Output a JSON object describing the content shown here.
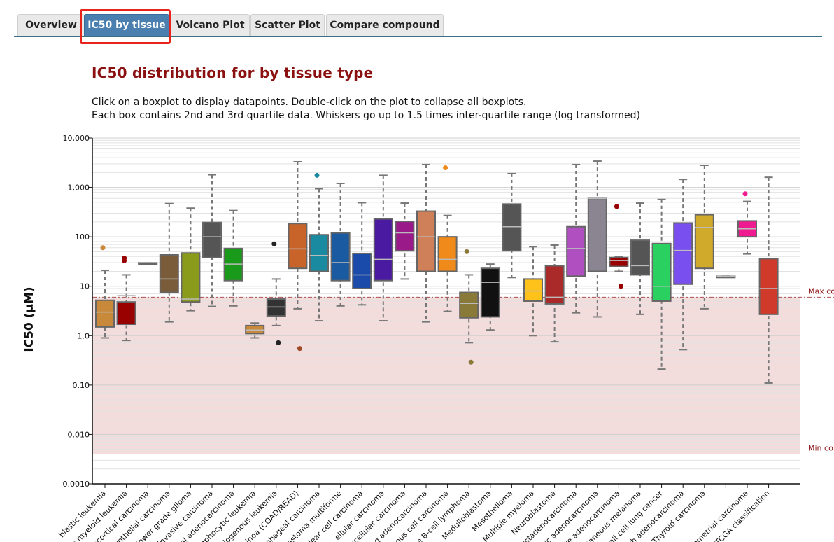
{
  "tabs": [
    {
      "id": "overview",
      "label": "Overview",
      "active": false
    },
    {
      "id": "ic50-by-tissue",
      "label": "IC50 by tissue",
      "active": true
    },
    {
      "id": "volcano-plot",
      "label": "Volcano Plot",
      "active": false
    },
    {
      "id": "scatter-plot",
      "label": "Scatter Plot",
      "active": false
    },
    {
      "id": "compare-compound",
      "label": "Compare compound",
      "active": false
    }
  ],
  "heading": "IC50 distribution for by tissue type",
  "description": {
    "line1": "Click on a boxplot to display datapoints. Double-click on the plot to collapse all boxplots.",
    "line2": "Each box contains 2nd and 3rd quartile data. Whiskers go up to 1.5 times inter-quartile range (log transformed)"
  },
  "colors": {
    "accent": "#4a7fb0",
    "heading": "#8b1111",
    "highlight": "#e8231c",
    "shade": "#f3dcdc"
  },
  "chart_data": {
    "type": "boxplot",
    "scale": "log",
    "ylabel": "IC50 (μM)",
    "ylim": [
      0.001,
      10000
    ],
    "yticks": [
      {
        "v": 10000,
        "label": "10,000"
      },
      {
        "v": 1000,
        "label": "1,000"
      },
      {
        "v": 100,
        "label": "100"
      },
      {
        "v": 10,
        "label": "10"
      },
      {
        "v": 1,
        "label": "1.0"
      },
      {
        "v": 0.1,
        "label": "0.10"
      },
      {
        "v": 0.01,
        "label": "0.010"
      },
      {
        "v": 0.001,
        "label": "0.0010"
      }
    ],
    "ref_lines": [
      {
        "label": "Max co",
        "value": 6
      },
      {
        "label": "Min co",
        "value": 0.004
      }
    ],
    "grid": true,
    "series": [
      {
        "label": "blastic leukemia",
        "color": "#c88a3a",
        "box": [
          3,
          5,
          1.5,
          1.8,
          5.2,
          0.9,
          21
        ],
        "outliers": [
          60
        ],
        "outlier_color": "#c88a3a"
      },
      {
        "label": "e myeloid leukemia",
        "color": "#990000",
        "box": [
          6.5,
          2.5,
          1.7,
          1.7,
          4.8,
          0.8,
          17
        ],
        "outliers": [
          33,
          37
        ],
        "outlier_color": "#990000"
      },
      {
        "label": "ocortical carcinoma",
        "color": "#999999",
        "box": [
          30,
          30,
          30,
          30,
          30,
          30,
          30
        ],
        "outliers": [],
        "outlier_color": "#999999"
      },
      {
        "label": "rothelial carcinoma",
        "color": "#7a5c3a",
        "box": [
          14,
          14,
          7.5,
          7.5,
          43,
          1.9,
          470
        ],
        "outliers": [],
        "outlier_color": "#7a5c3a"
      },
      {
        "label": "lower grade glioma",
        "color": "#8a9a1a",
        "box": [
          5.5,
          5.5,
          4.8,
          4.8,
          47,
          3.2,
          380
        ],
        "outliers": [],
        "outlier_color": "#8a9a1a"
      },
      {
        "label": "invasive carcinoma",
        "color": "#555555",
        "box": [
          100,
          100,
          38,
          38,
          195,
          3.9,
          1800
        ],
        "outliers": [],
        "outlier_color": "#555555"
      },
      {
        "label": "ical adenocarcinoma",
        "color": "#1a9a1a",
        "box": [
          28,
          28,
          13,
          13,
          58,
          4,
          340
        ],
        "outliers": [],
        "outlier_color": "#1a9a1a"
      },
      {
        "label": "mphocytic leukemia",
        "color": "#c88a3a",
        "box": [
          1.3,
          1.3,
          1.1,
          1.1,
          1.6,
          0.9,
          1.8
        ],
        "outliers": [],
        "outlier_color": "#c88a3a"
      },
      {
        "label": "logenous leukemia",
        "color": "#333333",
        "box": [
          3.8,
          3.8,
          2.5,
          2.5,
          5.5,
          1.6,
          14
        ],
        "outliers": [
          72,
          0.72
        ],
        "outlier_color": "#222222"
      },
      {
        "label": "inoa (COAD/READ)",
        "color": "#c8642a",
        "box": [
          57,
          57,
          23,
          23,
          185,
          3.5,
          3300
        ],
        "outliers": [
          0.55
        ],
        "outlier_color": "#a04a2a"
      },
      {
        "label": "ophageal carcinoma",
        "color": "#1a8aa0",
        "box": [
          42,
          42,
          20,
          20,
          110,
          2,
          940
        ],
        "outliers": [
          1750
        ],
        "outlier_color": "#1a8aa0"
      },
      {
        "label": "lastoma multiforme",
        "color": "#1a5aa0",
        "box": [
          30,
          30,
          13,
          13,
          120,
          4,
          1200
        ],
        "outliers": [],
        "outlier_color": "#1a5aa0"
      },
      {
        "label": "lear cell carcinoma",
        "color": "#1a4aaa",
        "box": [
          17,
          17,
          9,
          9,
          46,
          4.2,
          490
        ],
        "outliers": [],
        "outlier_color": "#1a4aaa"
      },
      {
        "label": "ellular carcinoma",
        "color": "#4a1aa0",
        "box": [
          35,
          35,
          13,
          13,
          230,
          2,
          1750
        ],
        "outliers": [],
        "outlier_color": "#4a1aa0"
      },
      {
        "label": "ocellular carcinoma",
        "color": "#9a1a8a",
        "box": [
          120,
          120,
          52,
          52,
          205,
          14,
          480
        ],
        "outliers": [],
        "outlier_color": "#9a1a8a"
      },
      {
        "label": "ng adenocarcinoma",
        "color": "#d08058",
        "box": [
          100,
          100,
          20,
          20,
          330,
          1.9,
          2900
        ],
        "outliers": [],
        "outlier_color": "#d08058"
      },
      {
        "label": "mous cell carcinoma",
        "color": "#f08a1a",
        "box": [
          35,
          35,
          20,
          20,
          100,
          3.1,
          270
        ],
        "outliers": [
          2500
        ],
        "outlier_color": "#f08a1a"
      },
      {
        "label": "e B-cell lymphoma",
        "color": "#8a7a3a",
        "box": [
          4.5,
          4.5,
          2.3,
          2.3,
          7.5,
          0.72,
          17
        ],
        "outliers": [
          50,
          0.29
        ],
        "outlier_color": "#8a7a3a"
      },
      {
        "label": "Medulloblastoma",
        "color": "#111111",
        "box": [
          12,
          12,
          2.4,
          2.4,
          23,
          1.3,
          28
        ],
        "outliers": [],
        "outlier_color": "#111111"
      },
      {
        "label": "Mesothelioma",
        "color": "#555555",
        "box": [
          160,
          160,
          52,
          52,
          460,
          15,
          1900
        ],
        "outliers": [],
        "outlier_color": "#555555"
      },
      {
        "label": "Multiple myeloma",
        "color": "#ffc21a",
        "box": [
          8,
          8,
          5,
          5,
          14,
          1,
          63
        ],
        "outliers": [],
        "outlier_color": "#ffc21a"
      },
      {
        "label": "Neuroblastoma",
        "color": "#aa2a2a",
        "box": [
          6,
          6,
          4.4,
          4.4,
          26,
          0.75,
          68
        ],
        "outliers": [],
        "outlier_color": "#aa2a2a"
      },
      {
        "label": "ystadenocarcinoma",
        "color": "#b050c0",
        "box": [
          58,
          58,
          16,
          16,
          160,
          2.9,
          2900
        ],
        "outliers": [],
        "outlier_color": "#b050c0"
      },
      {
        "label": "tic adenocarcinoma",
        "color": "#8a8590",
        "box": [
          600,
          600,
          20,
          20,
          600,
          2.4,
          3400
        ],
        "outliers": [],
        "outlier_color": "#8a8590"
      },
      {
        "label": "te adenocarcinoma",
        "color": "#990000",
        "box": [
          33,
          33,
          25,
          25,
          38,
          20,
          40
        ],
        "outliers": [
          410,
          10
        ],
        "outlier_color": "#990000"
      },
      {
        "label": "itaneous melanoma",
        "color": "#555555",
        "box": [
          26,
          26,
          17,
          17,
          85,
          2.7,
          480
        ],
        "outliers": [],
        "outlier_color": "#555555"
      },
      {
        "label": "mall cell lung cancer",
        "color": "#2ad060",
        "box": [
          10,
          10,
          5,
          5,
          73,
          0.21,
          570
        ],
        "outliers": [],
        "outlier_color": "#2ad060"
      },
      {
        "label": "ch adenocarcinoma",
        "color": "#7a4ff0",
        "box": [
          53,
          53,
          11,
          11,
          190,
          0.52,
          1450
        ],
        "outliers": [],
        "outlier_color": "#7a4ff0"
      },
      {
        "label": "Thyroid carcinoma",
        "color": "#d0aa2a",
        "box": [
          155,
          155,
          23,
          23,
          280,
          3.5,
          2800
        ],
        "outliers": [],
        "outlier_color": "#d0aa2a"
      },
      {
        "label": "",
        "color": "#999999",
        "box": [
          16,
          16,
          16,
          16,
          16,
          16,
          16
        ],
        "outliers": [],
        "outlier_color": "#999999"
      },
      {
        "label": "ometrial carcinoma",
        "color": "#f01a90",
        "box": [
          145,
          145,
          100,
          100,
          210,
          45,
          520
        ],
        "outliers": [
          740
        ],
        "outlier_color": "#f01a90"
      },
      {
        "label": "TCGA classification",
        "color": "#d03a2a",
        "box": [
          9,
          9,
          2.7,
          2.7,
          36,
          0.11,
          1600
        ],
        "outliers": [],
        "outlier_color": "#d03a2a"
      }
    ]
  }
}
